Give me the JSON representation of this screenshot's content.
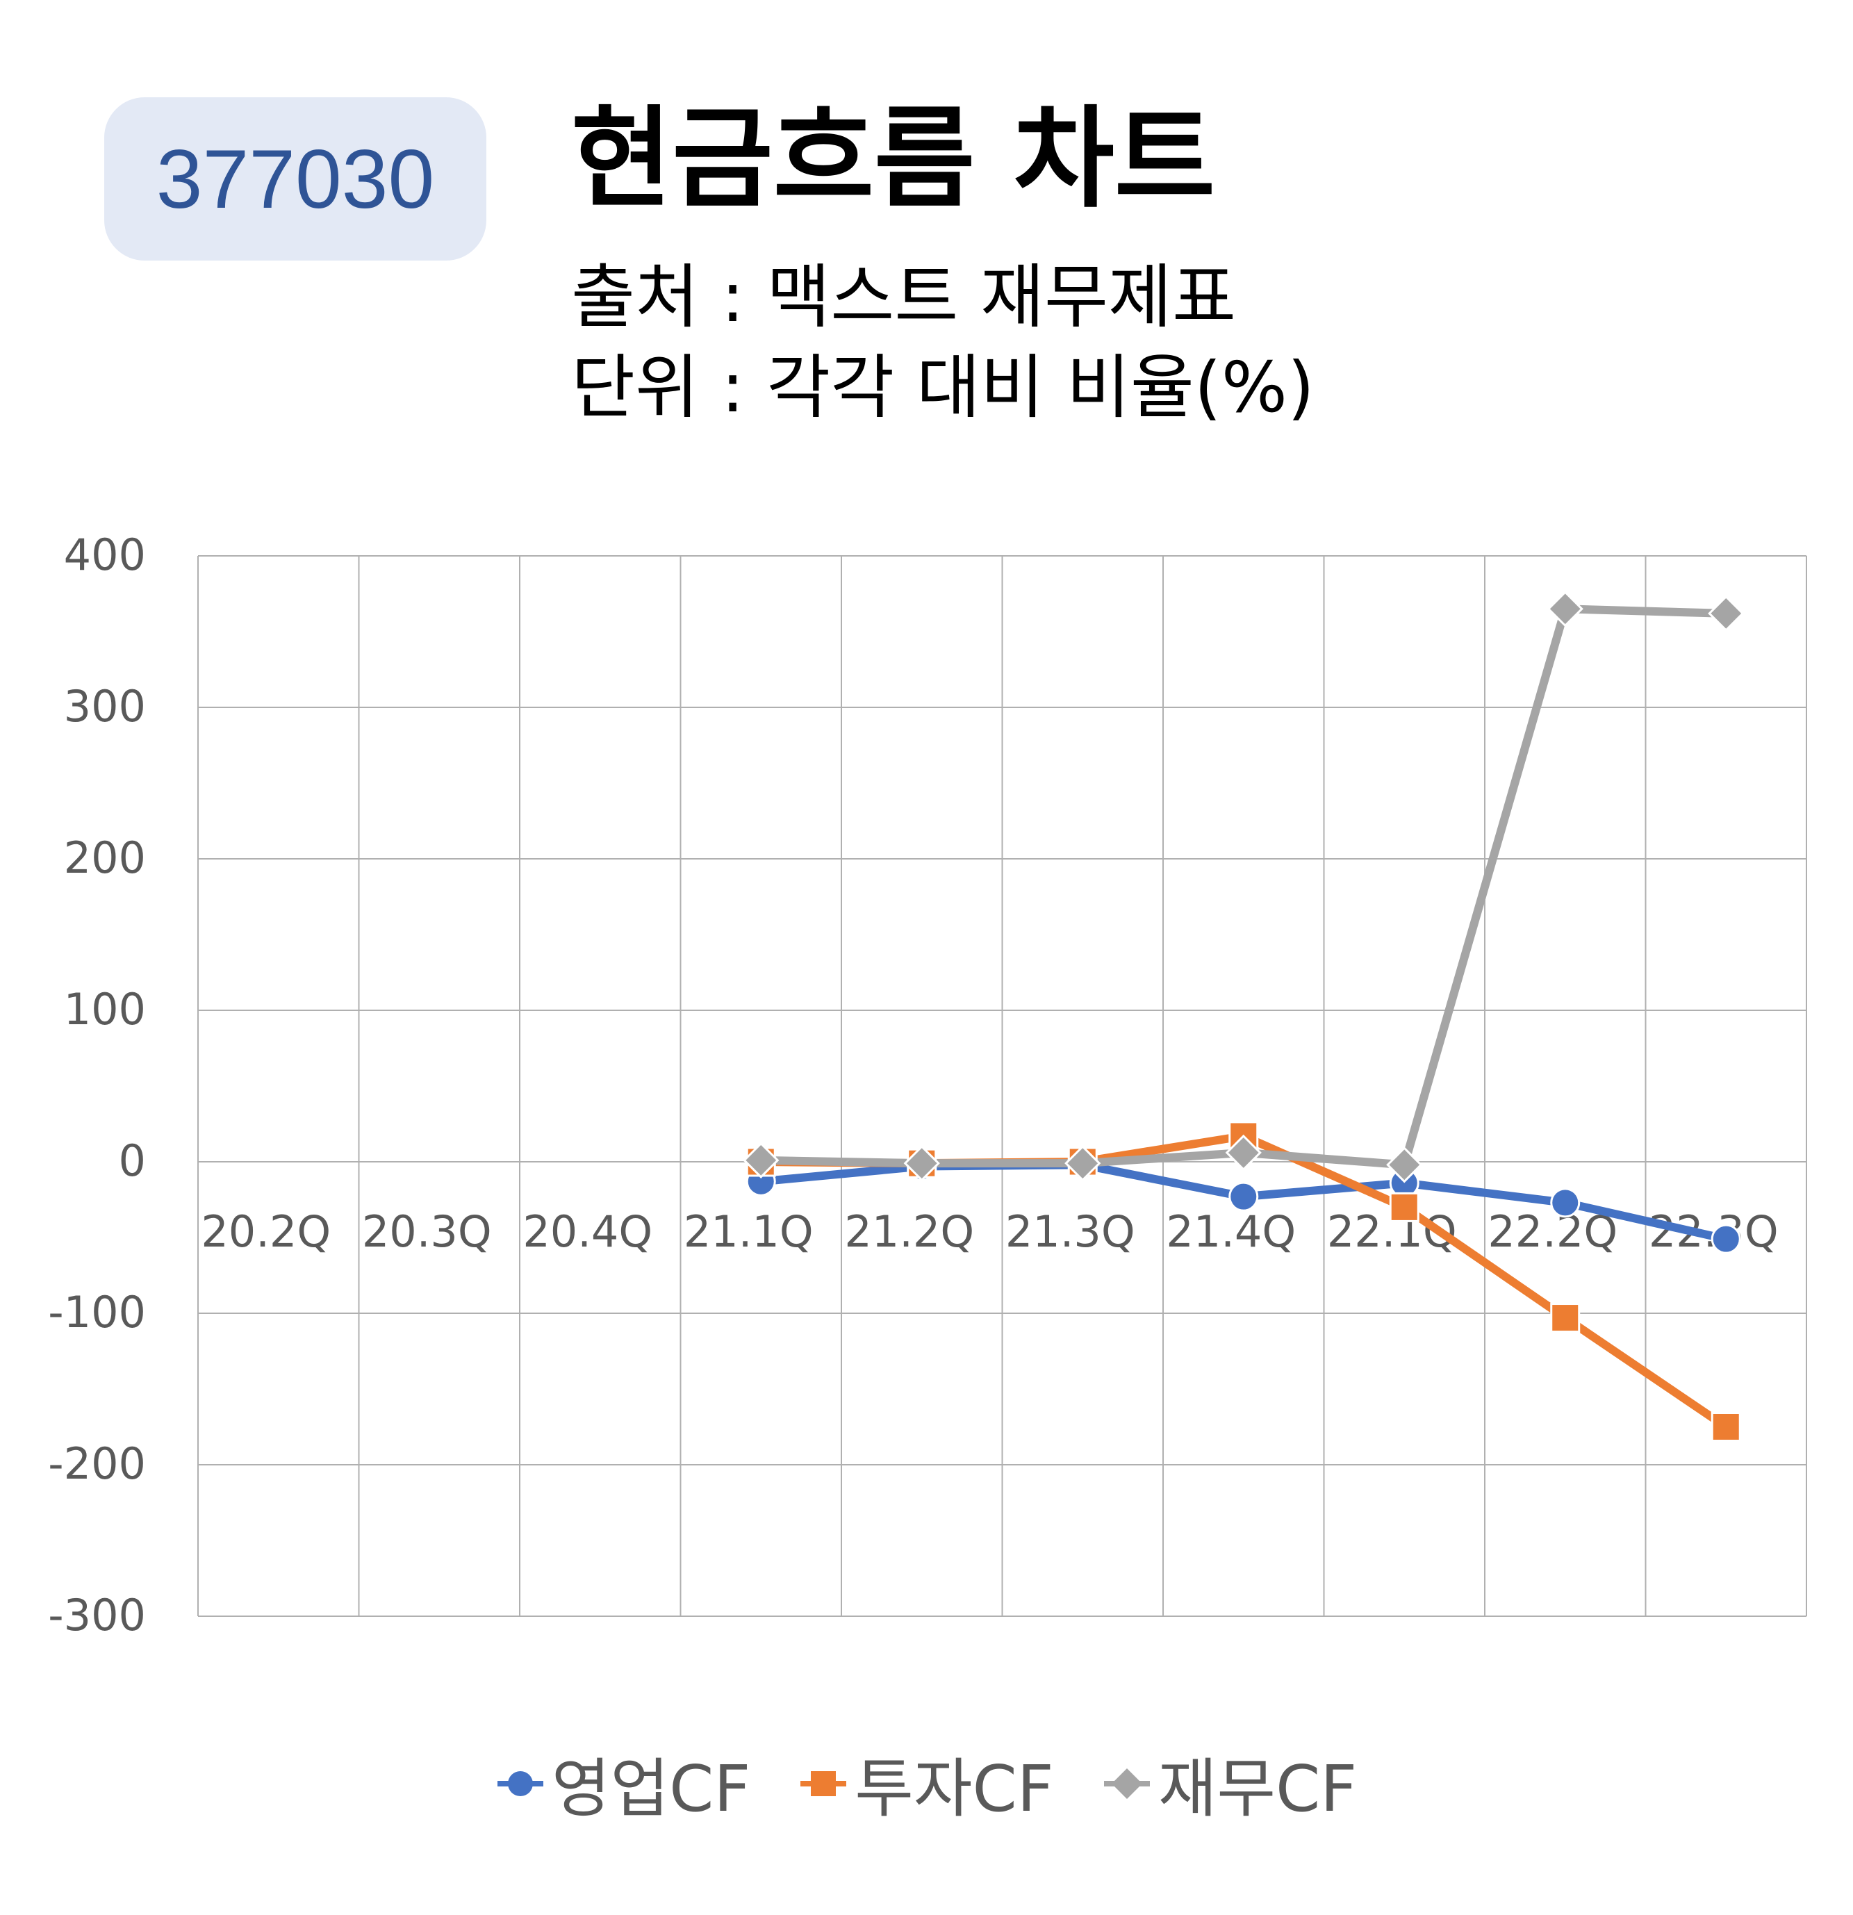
{
  "header": {
    "code": "377030",
    "title": "현금흐름 차트",
    "source": "출처 : 맥스트 재무제표",
    "unit": "단위 : 각각 대비 비율(%)"
  },
  "colors": {
    "series1": "#4472c4",
    "series2": "#ed7d31",
    "series3": "#a5a5a5"
  },
  "chart_data": {
    "type": "line",
    "categories": [
      "20.2Q",
      "20.3Q",
      "20.4Q",
      "21.1Q",
      "21.2Q",
      "21.3Q",
      "21.4Q",
      "22.1Q",
      "22.2Q",
      "22.3Q"
    ],
    "ylim": [
      -300,
      400
    ],
    "yticks": [
      "400",
      "300",
      "200",
      "100",
      "0",
      "-100",
      "-200",
      "-300"
    ],
    "grid": true,
    "legend_position": "bottom",
    "series": [
      {
        "name": "영업CF",
        "marker": "circle",
        "color": "#4472c4",
        "values": [
          null,
          null,
          null,
          -13,
          -3,
          -2,
          -23,
          -14,
          -27,
          -51
        ]
      },
      {
        "name": "투자CF",
        "marker": "square",
        "color": "#ed7d31",
        "values": [
          null,
          null,
          null,
          0,
          -1,
          0,
          17,
          -30,
          -103,
          -175
        ]
      },
      {
        "name": "재무CF",
        "marker": "diamond",
        "color": "#a5a5a5",
        "values": [
          null,
          null,
          null,
          1,
          -1,
          -1,
          6,
          -2,
          365,
          362
        ]
      }
    ]
  }
}
